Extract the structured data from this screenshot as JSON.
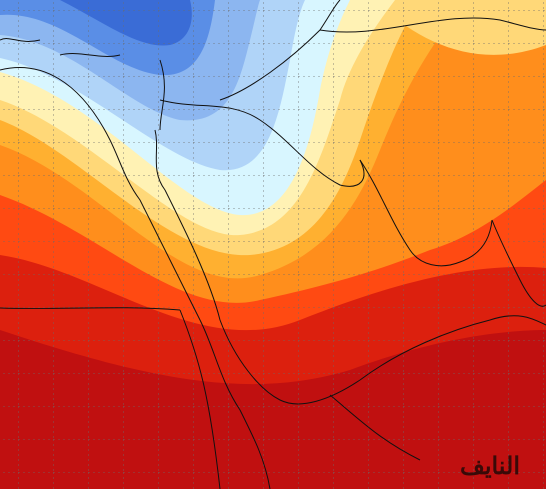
{
  "watermark": "النايف"
}
